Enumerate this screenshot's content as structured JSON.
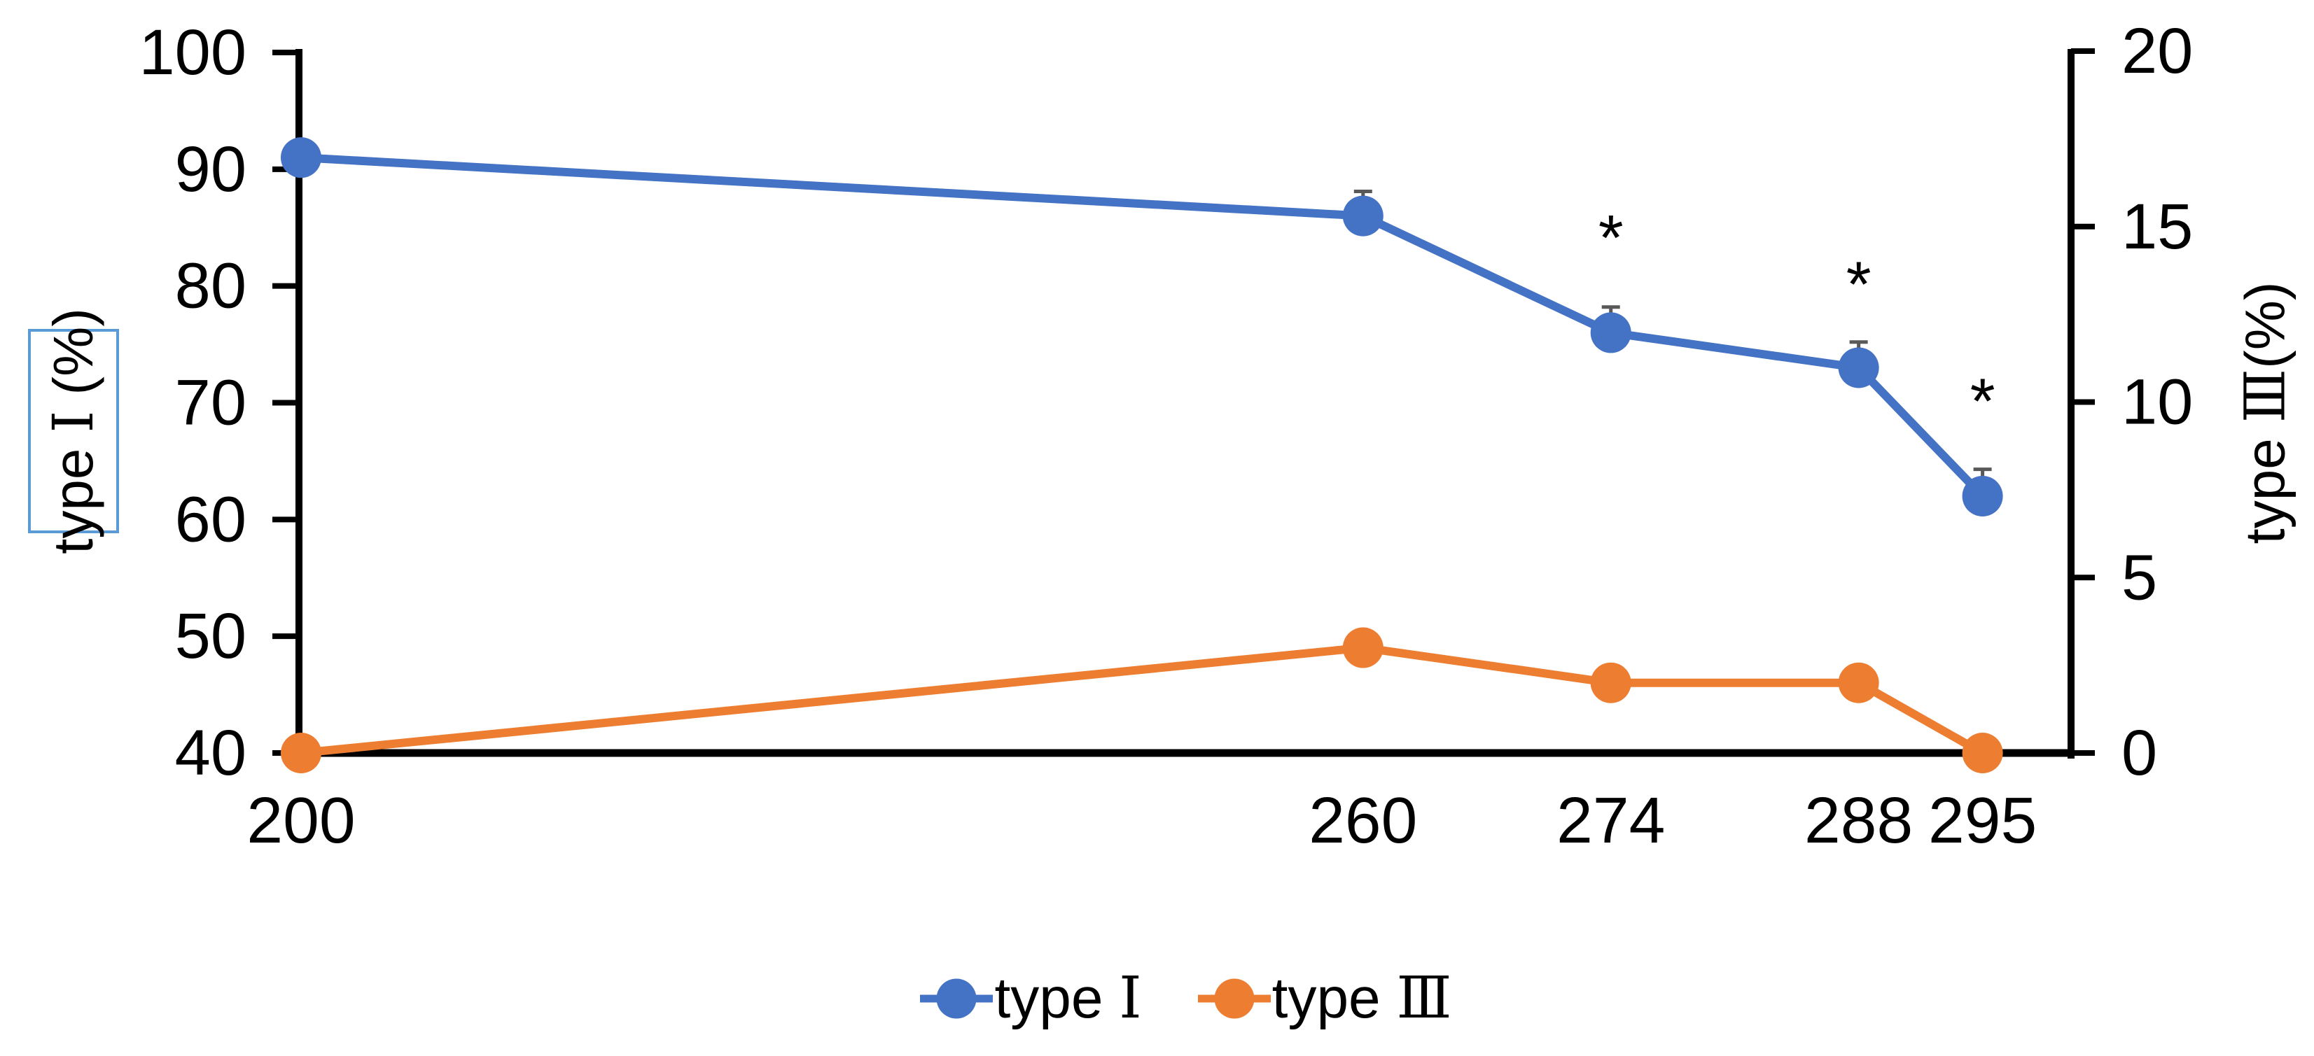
{
  "chart_data": {
    "type": "line",
    "title": "",
    "x": [
      200,
      260,
      274,
      288,
      295
    ],
    "x_axis": {
      "tick_labels": [
        "200",
        "260",
        "274",
        "288",
        "295"
      ],
      "range": [
        200,
        300
      ],
      "grid": false
    },
    "left_axis": {
      "title_text": "type Ⅰ (%)",
      "title": {
        "pre": "type ",
        "numeral": "Ⅰ",
        "post": " (%)"
      },
      "ticks": [
        100,
        90,
        80,
        70,
        60,
        50,
        40
      ],
      "range": [
        40,
        100
      ],
      "boxed": true
    },
    "right_axis": {
      "title_text": "type Ⅲ(%)",
      "title": {
        "pre": "type ",
        "numeral": "Ⅲ",
        "post": "(%)"
      },
      "ticks": [
        20,
        15,
        10,
        5,
        0
      ],
      "range": [
        0,
        20
      ],
      "boxed": false
    },
    "series": [
      {
        "name": "type Ⅰ",
        "axis": "left",
        "color": "#4472C4",
        "values": [
          91,
          86,
          76,
          73,
          62
        ],
        "error_up": [
          1.2,
          2.1,
          2.2,
          2.2,
          2.3
        ],
        "marker": "circle"
      },
      {
        "name": "type Ⅲ",
        "axis": "right",
        "color": "#ED7D31",
        "values": [
          0,
          3,
          2,
          2,
          0
        ],
        "error_up": [
          0,
          0,
          0,
          0,
          0
        ],
        "marker": "circle"
      }
    ],
    "annotations": [
      {
        "text": "*",
        "x": 274,
        "y_left": 85
      },
      {
        "text": "*",
        "x": 288,
        "y_left": 81
      },
      {
        "text": "*",
        "x": 295,
        "y_left": 71
      }
    ],
    "legend": {
      "position": "bottom",
      "items": [
        {
          "pre": "type ",
          "numeral": "Ⅰ",
          "label": "type Ⅰ",
          "color": "#4472C4"
        },
        {
          "pre": "type ",
          "numeral": "Ⅲ",
          "label": "type Ⅲ",
          "color": "#ED7D31"
        }
      ]
    },
    "colors": {
      "axis": "#000000",
      "error_bar": "#595959",
      "title_box_border": "#5B9BD5",
      "background": "#FFFFFF"
    }
  }
}
